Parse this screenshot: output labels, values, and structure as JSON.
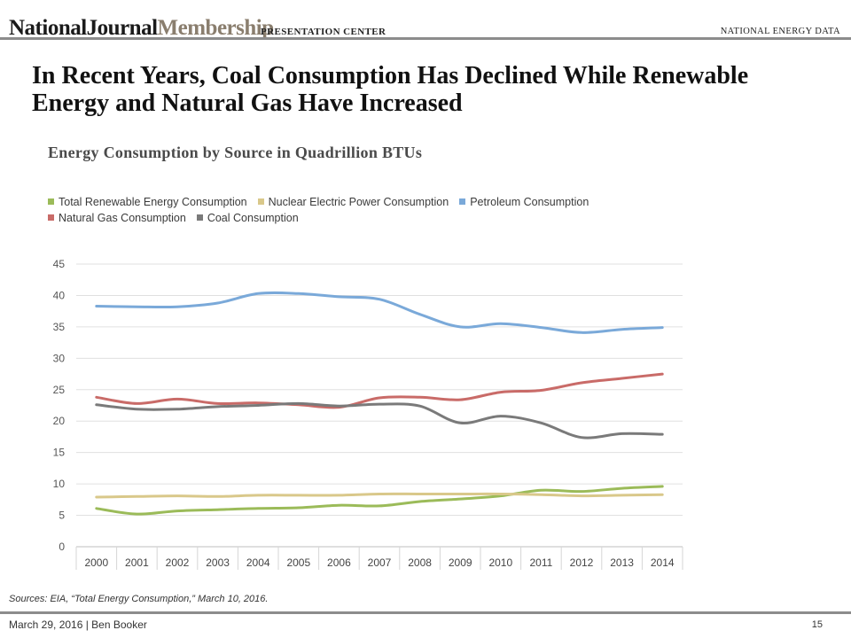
{
  "header": {
    "logo_primary": "NationalJournal",
    "logo_secondary": "Membership",
    "center_label": "PRESENTATION CENTER",
    "right_label": "NATIONAL ENERGY DATA"
  },
  "slide_title": "In Recent Years, Coal Consumption Has Declined While Renewable Energy and Natural Gas Have Increased",
  "source_note": "Sources: EIA, “Total Energy Consumption,” March 10, 2016.",
  "footer": {
    "left": "March 29, 2016 | Ben Booker",
    "page": "15"
  },
  "chart_data": {
    "type": "line",
    "title": "Energy Consumption by Source in Quadrillion BTUs",
    "xlabel": "",
    "ylabel": "",
    "categories": [
      "2000",
      "2001",
      "2002",
      "2003",
      "2004",
      "2005",
      "2006",
      "2007",
      "2008",
      "2009",
      "2010",
      "2011",
      "2012",
      "2013",
      "2014"
    ],
    "ylim": [
      0,
      45
    ],
    "yticks": [
      "0",
      "5",
      "10",
      "15",
      "20",
      "25",
      "30",
      "35",
      "40",
      "45"
    ],
    "grid": true,
    "legend_position": "top-left",
    "series": [
      {
        "name": "Total Renewable Energy Consumption",
        "color": "#9bbb59",
        "values": [
          6.1,
          5.2,
          5.7,
          5.9,
          6.1,
          6.2,
          6.6,
          6.5,
          7.2,
          7.6,
          8.1,
          9.0,
          8.8,
          9.3,
          9.6
        ]
      },
      {
        "name": "Nuclear Electric Power Consumption",
        "color": "#d9c88a",
        "values": [
          7.9,
          8.0,
          8.1,
          8.0,
          8.2,
          8.2,
          8.2,
          8.4,
          8.4,
          8.4,
          8.4,
          8.3,
          8.1,
          8.2,
          8.3
        ]
      },
      {
        "name": "Petroleum Consumption",
        "color": "#7aa9d9",
        "values": [
          38.3,
          38.2,
          38.2,
          38.8,
          40.3,
          40.3,
          39.8,
          39.4,
          37.0,
          35.0,
          35.5,
          34.9,
          34.1,
          34.6,
          34.9
        ]
      },
      {
        "name": "Natural Gas Consumption",
        "color": "#c96b68",
        "values": [
          23.8,
          22.8,
          23.5,
          22.8,
          22.9,
          22.6,
          22.2,
          23.7,
          23.8,
          23.4,
          24.6,
          24.9,
          26.1,
          26.8,
          27.5
        ]
      },
      {
        "name": "Coal Consumption",
        "color": "#7a7a7a",
        "values": [
          22.6,
          21.9,
          21.9,
          22.3,
          22.5,
          22.8,
          22.4,
          22.7,
          22.4,
          19.7,
          20.8,
          19.7,
          17.4,
          18.0,
          17.9
        ]
      }
    ]
  }
}
